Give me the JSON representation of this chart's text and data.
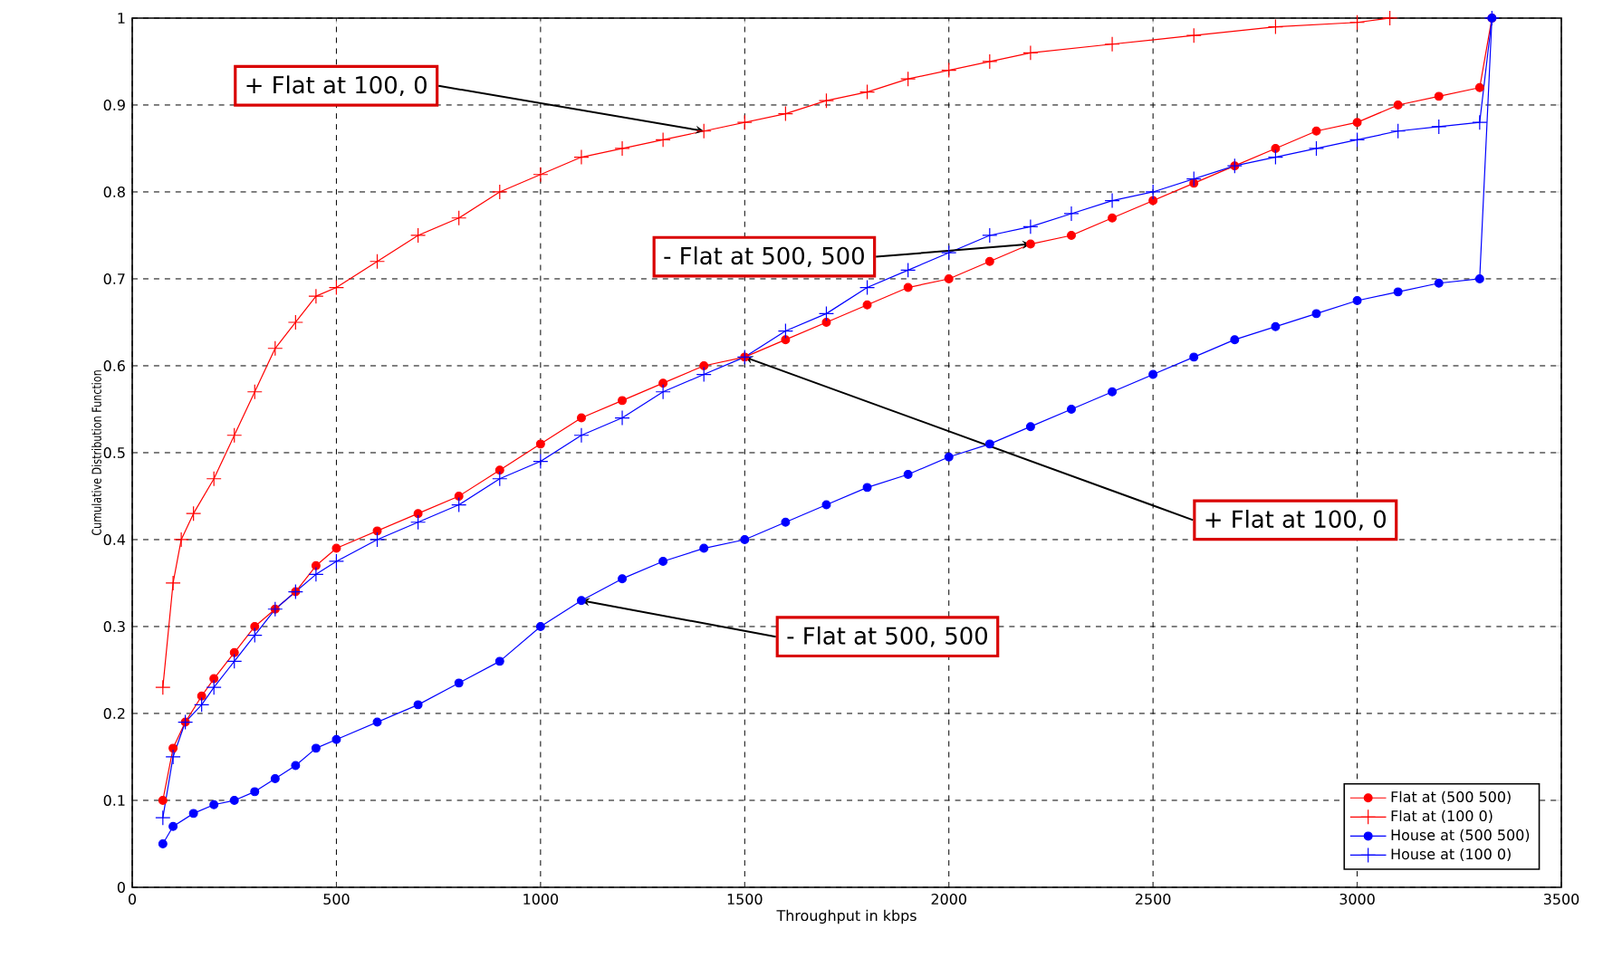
{
  "chart_data": {
    "type": "line",
    "xlabel": "Throughput in kbps",
    "ylabel": "Cumulative Distribution Function",
    "xlim": [
      0,
      3500
    ],
    "ylim": [
      0,
      1
    ],
    "xticks": [
      0,
      500,
      1000,
      1500,
      2000,
      2500,
      3000,
      3500
    ],
    "yticks": [
      0,
      0.1,
      0.2,
      0.3,
      0.4,
      0.5,
      0.6,
      0.7,
      0.8,
      0.9,
      1
    ],
    "grid": true,
    "legend": "bottom right",
    "line_style": "solid",
    "series": [
      {
        "name": "Flat at (500 500)",
        "color": "#ff0000",
        "marker": "circle",
        "x": [
          75,
          100,
          130,
          170,
          200,
          250,
          300,
          350,
          400,
          450,
          500,
          600,
          700,
          800,
          900,
          1000,
          1100,
          1200,
          1300,
          1400,
          1500,
          1600,
          1700,
          1800,
          1900,
          2000,
          2100,
          2200,
          2300,
          2400,
          2500,
          2600,
          2700,
          2800,
          2900,
          3000,
          3100,
          3200,
          3300,
          3330
        ],
        "values": [
          0.1,
          0.16,
          0.19,
          0.22,
          0.24,
          0.27,
          0.3,
          0.32,
          0.34,
          0.37,
          0.39,
          0.41,
          0.43,
          0.45,
          0.48,
          0.51,
          0.54,
          0.56,
          0.58,
          0.6,
          0.61,
          0.63,
          0.65,
          0.67,
          0.69,
          0.7,
          0.72,
          0.74,
          0.75,
          0.77,
          0.79,
          0.81,
          0.83,
          0.85,
          0.87,
          0.88,
          0.9,
          0.91,
          0.92,
          1.0
        ]
      },
      {
        "name": "Flat at (100  0)",
        "color": "#ff0000",
        "marker": "cross",
        "x": [
          75,
          100,
          120,
          150,
          200,
          250,
          300,
          350,
          400,
          450,
          500,
          600,
          700,
          800,
          900,
          1000,
          1100,
          1200,
          1300,
          1400,
          1500,
          1600,
          1700,
          1800,
          1900,
          2000,
          2100,
          2200,
          2400,
          2600,
          2800,
          3000,
          3080
        ],
        "values": [
          0.23,
          0.35,
          0.4,
          0.43,
          0.47,
          0.52,
          0.57,
          0.62,
          0.65,
          0.68,
          0.69,
          0.72,
          0.75,
          0.77,
          0.8,
          0.82,
          0.84,
          0.85,
          0.86,
          0.87,
          0.88,
          0.89,
          0.905,
          0.915,
          0.93,
          0.94,
          0.95,
          0.96,
          0.97,
          0.98,
          0.99,
          0.995,
          1.0
        ]
      },
      {
        "name": "House at (500 500)",
        "color": "#0000ff",
        "marker": "circle",
        "x": [
          75,
          100,
          150,
          200,
          250,
          300,
          350,
          400,
          450,
          500,
          600,
          700,
          800,
          900,
          1000,
          1100,
          1200,
          1300,
          1400,
          1500,
          1600,
          1700,
          1800,
          1900,
          2000,
          2100,
          2200,
          2300,
          2400,
          2500,
          2600,
          2700,
          2800,
          2900,
          3000,
          3100,
          3200,
          3300,
          3330
        ],
        "values": [
          0.05,
          0.07,
          0.085,
          0.095,
          0.1,
          0.11,
          0.125,
          0.14,
          0.16,
          0.17,
          0.19,
          0.21,
          0.235,
          0.26,
          0.3,
          0.33,
          0.355,
          0.375,
          0.39,
          0.4,
          0.42,
          0.44,
          0.46,
          0.475,
          0.495,
          0.51,
          0.53,
          0.55,
          0.57,
          0.59,
          0.61,
          0.63,
          0.645,
          0.66,
          0.675,
          0.685,
          0.695,
          0.7,
          1.0
        ]
      },
      {
        "name": "House at (100 0)",
        "color": "#0000ff",
        "marker": "cross",
        "x": [
          75,
          100,
          130,
          170,
          200,
          250,
          300,
          350,
          400,
          450,
          500,
          600,
          700,
          800,
          900,
          1000,
          1100,
          1200,
          1300,
          1400,
          1500,
          1600,
          1700,
          1800,
          1900,
          2000,
          2100,
          2200,
          2300,
          2400,
          2500,
          2600,
          2700,
          2800,
          2900,
          3000,
          3100,
          3200,
          3300,
          3330
        ],
        "values": [
          0.08,
          0.15,
          0.19,
          0.21,
          0.23,
          0.26,
          0.29,
          0.32,
          0.34,
          0.36,
          0.375,
          0.4,
          0.42,
          0.44,
          0.47,
          0.49,
          0.52,
          0.54,
          0.57,
          0.59,
          0.61,
          0.64,
          0.66,
          0.69,
          0.71,
          0.73,
          0.75,
          0.76,
          0.775,
          0.79,
          0.8,
          0.815,
          0.83,
          0.84,
          0.85,
          0.86,
          0.87,
          0.875,
          0.88,
          1.0
        ]
      }
    ],
    "annotations": [
      {
        "text": "+ Flat at 100, 0",
        "x": 1400,
        "y": 0.87
      },
      {
        "text": "- Flat at 500, 500",
        "x": 2200,
        "y": 0.74
      },
      {
        "text": "+ Flat at 100, 0",
        "x": 1500,
        "y": 0.61
      },
      {
        "text": "- Flat at 500, 500",
        "x": 1100,
        "y": 0.33
      }
    ]
  }
}
